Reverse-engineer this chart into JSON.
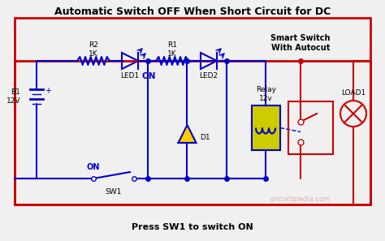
{
  "title": "Automatic Switch OFF When Short Circuit for DC",
  "subtitle": "Press SW1 to switch ON",
  "watermark": "circuitspedia.com",
  "bg_color": "#f0f0f0",
  "border_color": "#cc0000",
  "wire_color_red": "#cc0000",
  "wire_color_blue": "#0000cc",
  "component_color": "#0000cc",
  "relay_fill": "#cccc00",
  "diode_fill": "#ffcc00",
  "battery_label": "B1\n12V",
  "sw1_label": "SW1",
  "sw1_on": "ON",
  "led1_label": "LED1",
  "led1_on": "ON",
  "led2_label": "LED2",
  "r2_label": "R2\n1K",
  "r1_label": "R1\n1K",
  "d1_label": "D1",
  "relay_label": "Relay\n12v",
  "load_label": "LOAD1",
  "smart_label": "Smart Switch\nWith Autocut"
}
